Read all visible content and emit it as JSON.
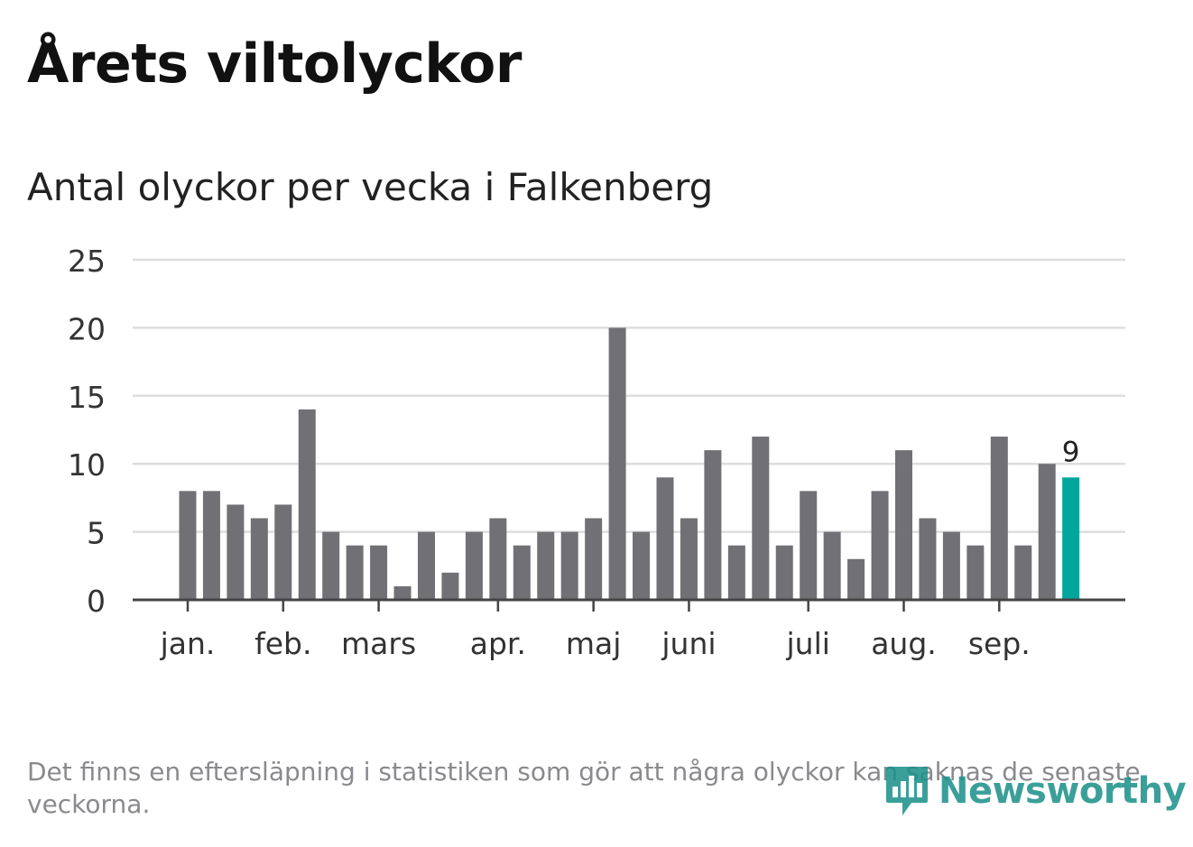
{
  "header": {
    "title": "Årets viltolyckor",
    "subtitle": "Antal olyckor per vecka i Falkenberg"
  },
  "footnote": "Det finns en eftersläpning i statistiken som gör att några olyckor kan saknas de senaste veckorna.",
  "brand": {
    "name": "Newsworthy",
    "icon": "newsworthy-logo-icon",
    "color": "#1a8f88"
  },
  "colors": {
    "bar": "#717075",
    "highlight": "#00a69b",
    "grid": "#dddddd",
    "axis": "#444444"
  },
  "chart_data": {
    "type": "bar",
    "title": "Antal olyckor per vecka i Falkenberg",
    "xlabel": "",
    "ylabel": "",
    "ylim": [
      0,
      25
    ],
    "yticks": [
      0,
      5,
      10,
      15,
      20,
      25
    ],
    "grid": true,
    "weeks": [
      1,
      2,
      3,
      4,
      5,
      6,
      7,
      8,
      9,
      10,
      11,
      12,
      13,
      14,
      15,
      16,
      17,
      18,
      19,
      20,
      21,
      22,
      23,
      24,
      25,
      26,
      27,
      28,
      29,
      30,
      31,
      32,
      33,
      34,
      35,
      36,
      37,
      38
    ],
    "values": [
      8,
      8,
      7,
      6,
      7,
      14,
      5,
      4,
      4,
      1,
      5,
      2,
      5,
      6,
      4,
      5,
      5,
      6,
      20,
      5,
      9,
      6,
      11,
      4,
      12,
      4,
      8,
      5,
      3,
      8,
      11,
      6,
      5,
      4,
      12,
      4,
      10,
      9
    ],
    "highlight_index": 37,
    "highlight_label": "9",
    "month_ticks": [
      {
        "label": "jan.",
        "week": 1
      },
      {
        "label": "feb.",
        "week": 5
      },
      {
        "label": "mars",
        "week": 9
      },
      {
        "label": "apr.",
        "week": 14
      },
      {
        "label": "maj",
        "week": 18
      },
      {
        "label": "juni",
        "week": 22
      },
      {
        "label": "juli",
        "week": 27
      },
      {
        "label": "aug.",
        "week": 31
      },
      {
        "label": "sep.",
        "week": 35
      }
    ]
  }
}
